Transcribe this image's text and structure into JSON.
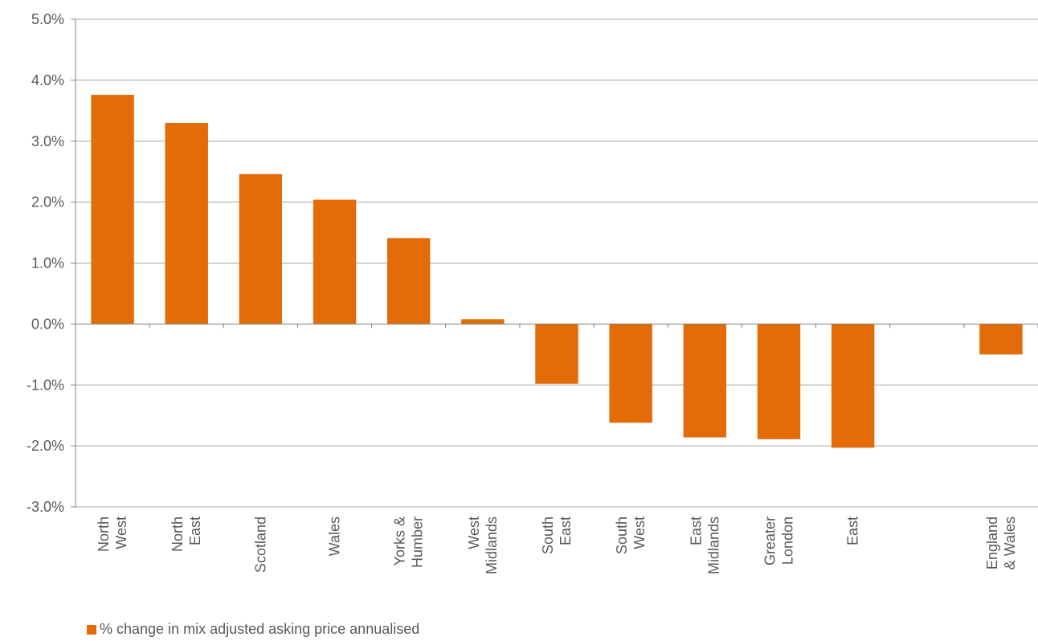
{
  "chart_data": {
    "type": "bar",
    "categories": [
      [
        "North",
        "West"
      ],
      [
        "North",
        "East"
      ],
      [
        "Scotland"
      ],
      [
        "Wales"
      ],
      [
        "Yorks &",
        "Humber"
      ],
      [
        "West",
        "Midlands"
      ],
      [
        "South",
        "East"
      ],
      [
        "South",
        "West"
      ],
      [
        "East",
        "Midlands"
      ],
      [
        "Greater",
        "London"
      ],
      [
        "East"
      ],
      [
        ""
      ],
      [
        "England",
        "& Wales"
      ]
    ],
    "series": [
      {
        "name": "% change in mix adjusted asking price annualised",
        "color": "#E36C09",
        "values": [
          3.76,
          3.3,
          2.46,
          2.04,
          1.41,
          0.08,
          -0.98,
          -1.62,
          -1.86,
          -1.89,
          -2.03,
          null,
          -0.5
        ]
      }
    ],
    "ylim": [
      -3.0,
      5.0
    ],
    "yticks": [
      "5.0%",
      "4.0%",
      "3.0%",
      "2.0%",
      "1.0%",
      "0.0%",
      "-1.0%",
      "-2.0%",
      "-3.0%"
    ],
    "ytick_values": [
      5,
      4,
      3,
      2,
      1,
      0,
      -1,
      -2,
      -3
    ],
    "grid": true,
    "legend_position": "bottom-left",
    "xlabel": "",
    "ylabel": "",
    "title": ""
  }
}
